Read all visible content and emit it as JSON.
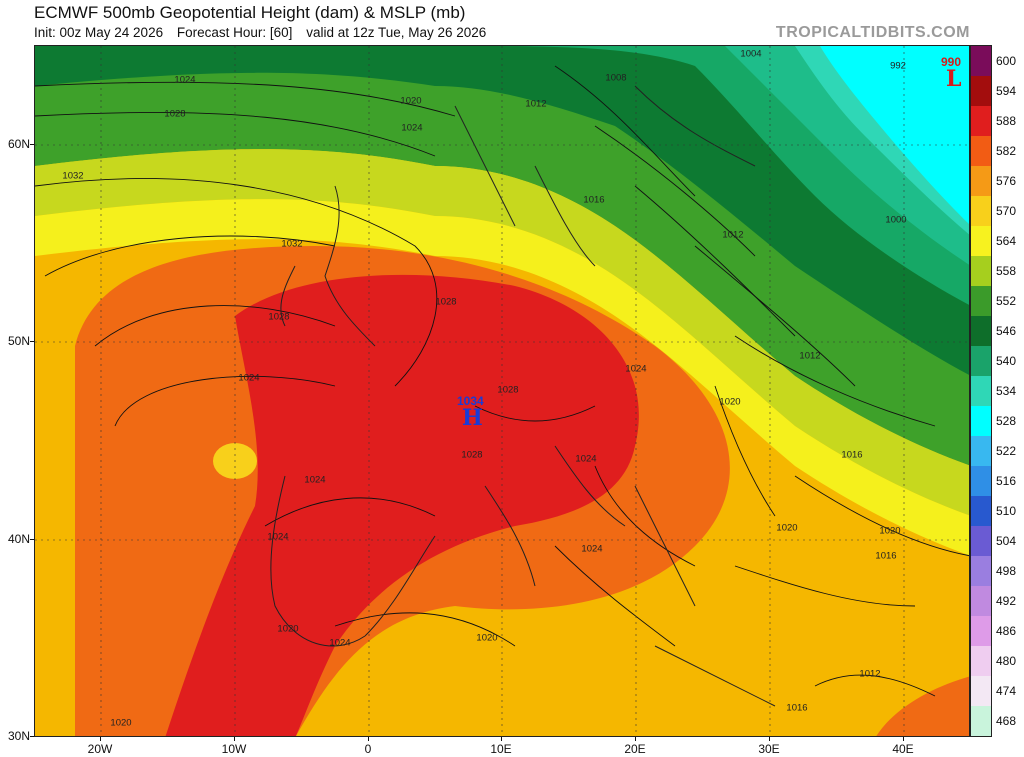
{
  "header": {
    "title": "ECMWF 500mb Geopotential Height (dam) & MSLP (mb)",
    "init": "Init: 00z May 24 2026",
    "forecast_hour": "Forecast Hour: [60]",
    "valid": "valid at 12z Tue, May 26 2026",
    "brand": "TROPICALTIDBITS.COM"
  },
  "axes": {
    "lat_labels": [
      "60N",
      "50N",
      "40N",
      "30N"
    ],
    "lon_labels": [
      "20W",
      "10W",
      "0",
      "10E",
      "20E",
      "30E",
      "40E"
    ]
  },
  "colorbar": {
    "labels": [
      "600",
      "594",
      "588",
      "582",
      "576",
      "570",
      "564",
      "558",
      "552",
      "546",
      "540",
      "534",
      "528",
      "522",
      "516",
      "510",
      "504",
      "498",
      "492",
      "486",
      "480",
      "474",
      "468"
    ],
    "colors": [
      "#7a0c5a",
      "#a30d0d",
      "#e01e1e",
      "#f25c14",
      "#f59a16",
      "#f8d01b",
      "#f7f21f",
      "#a6cf1e",
      "#3b9b2a",
      "#0e6e2a",
      "#1aa36a",
      "#2fd7b6",
      "#00ffff",
      "#38b8f0",
      "#2f8fe6",
      "#2859cf",
      "#6a5bd3",
      "#9a7ee0",
      "#c08ae0",
      "#de9be8",
      "#efcdf0",
      "#f3e8f4",
      "#c9f4dc"
    ]
  },
  "pressure_labels": [
    {
      "text": "1024"
    },
    {
      "text": "1028"
    },
    {
      "text": "1032"
    },
    {
      "text": "1032"
    },
    {
      "text": "1028"
    },
    {
      "text": "1024"
    },
    {
      "text": "1024"
    },
    {
      "text": "1024"
    },
    {
      "text": "1020"
    },
    {
      "text": "1024"
    },
    {
      "text": "1020"
    },
    {
      "text": "1028"
    },
    {
      "text": "1028"
    },
    {
      "text": "1028"
    },
    {
      "text": "1024"
    },
    {
      "text": "1024"
    },
    {
      "text": "1024"
    },
    {
      "text": "1020"
    },
    {
      "text": "1024"
    },
    {
      "text": "1012"
    },
    {
      "text": "1008"
    },
    {
      "text": "1004"
    },
    {
      "text": "992"
    },
    {
      "text": "1000"
    },
    {
      "text": "1016"
    },
    {
      "text": "1012"
    },
    {
      "text": "1012"
    },
    {
      "text": "1020"
    },
    {
      "text": "1016"
    },
    {
      "text": "1020"
    },
    {
      "text": "1020"
    },
    {
      "text": "1016"
    },
    {
      "text": "1012"
    },
    {
      "text": "1016"
    },
    {
      "text": "1020"
    }
  ],
  "high": {
    "value": "1034",
    "symbol": "H"
  },
  "low": {
    "value": "990",
    "symbol": "L"
  }
}
